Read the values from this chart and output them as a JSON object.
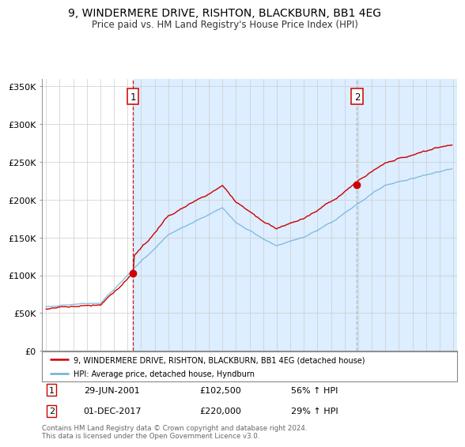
{
  "title": "9, WINDERMERE DRIVE, RISHTON, BLACKBURN, BB1 4EG",
  "subtitle": "Price paid vs. HM Land Registry's House Price Index (HPI)",
  "ylim": [
    0,
    360000
  ],
  "yticks": [
    0,
    50000,
    100000,
    150000,
    200000,
    250000,
    300000,
    350000
  ],
  "ytick_labels": [
    "£0",
    "£50K",
    "£100K",
    "£150K",
    "£200K",
    "£250K",
    "£300K",
    "£350K"
  ],
  "sale1_value": 102500,
  "sale2_value": 220000,
  "hpi_color": "#6baed6",
  "price_color": "#cc0000",
  "vline1_color": "#cc0000",
  "vline2_color": "#aaaaaa",
  "shade_color": "#dceeff",
  "legend_line1": "9, WINDERMERE DRIVE, RISHTON, BLACKBURN, BB1 4EG (detached house)",
  "legend_line2": "HPI: Average price, detached house, Hyndburn",
  "table_row1": [
    "1",
    "29-JUN-2001",
    "£102,500",
    "56% ↑ HPI"
  ],
  "table_row2": [
    "2",
    "01-DEC-2017",
    "£220,000",
    "29% ↑ HPI"
  ],
  "footnote": "Contains HM Land Registry data © Crown copyright and database right 2024.\nThis data is licensed under the Open Government Licence v3.0.",
  "bg_color": "#ffffff",
  "plot_bg": "#ffffff",
  "grid_color": "#cccccc",
  "xstart_year": 1995,
  "xend_year": 2025
}
